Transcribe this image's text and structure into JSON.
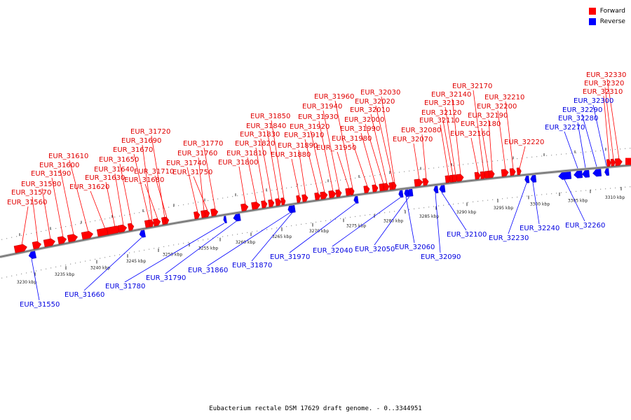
{
  "caption": "Eubacterium rectale DSM 17629 draft genome. - 0..3344951",
  "legend": [
    {
      "label": "Forward",
      "color": "#ff0000"
    },
    {
      "label": "Reverse",
      "color": "#0000ff"
    }
  ],
  "colors": {
    "forward": "#ff0000",
    "reverse": "#0000ff",
    "forward_label": "#e00000",
    "reverse_label": "#0000e0",
    "backbone": "#777777"
  },
  "ticks": [
    "3230 kbp",
    "3235 kbp",
    "3240 kbp",
    "3245 kbp",
    "3250 kbp",
    "3255 kbp",
    "3260 kbp",
    "3265 kbp",
    "3270 kbp",
    "3275 kbp",
    "3280 kbp",
    "3285 kbp",
    "3290 kbp",
    "3295 kbp",
    "3300 kbp",
    "3305 kbp",
    "3310 kbp"
  ],
  "forward_genes": [
    "EUR_31560",
    "EUR_31570",
    "EUR_31580",
    "EUR_31590",
    "EUR_31600",
    "EUR_31610",
    "EUR_31620",
    "EUR_31630",
    "EUR_31640",
    "EUR_31650",
    "EUR_31670",
    "EUR_31680",
    "EUR_31690",
    "EUR_31710",
    "EUR_31720",
    "EUR_31740",
    "EUR_31750",
    "EUR_31760",
    "EUR_31770",
    "EUR_31800",
    "EUR_31810",
    "EUR_31820",
    "EUR_31830",
    "EUR_31840",
    "EUR_31850",
    "EUR_31880",
    "EUR_31890",
    "EUR_31910",
    "EUR_31920",
    "EUR_31930",
    "EUR_31940",
    "EUR_31950",
    "EUR_31960",
    "EUR_31980",
    "EUR_31990",
    "EUR_32000",
    "EUR_32010",
    "EUR_32020",
    "EUR_32030",
    "EUR_32070",
    "EUR_32080",
    "EUR_32110",
    "EUR_32120",
    "EUR_32130",
    "EUR_32140",
    "EUR_32160",
    "EUR_32170",
    "EUR_32180",
    "EUR_32190",
    "EUR_32200",
    "EUR_32210",
    "EUR_32220",
    "EUR_32310",
    "EUR_32320",
    "EUR_32330"
  ],
  "reverse_genes": [
    "EUR_31550",
    "EUR_31660",
    "EUR_31780",
    "EUR_31790",
    "EUR_31860",
    "EUR_31870",
    "EUR_31970",
    "EUR_32040",
    "EUR_32050",
    "EUR_32060",
    "EUR_32090",
    "EUR_32100",
    "EUR_32230",
    "EUR_32240",
    "EUR_32260",
    "EUR_32270",
    "EUR_32280",
    "EUR_32290",
    "EUR_32300"
  ]
}
